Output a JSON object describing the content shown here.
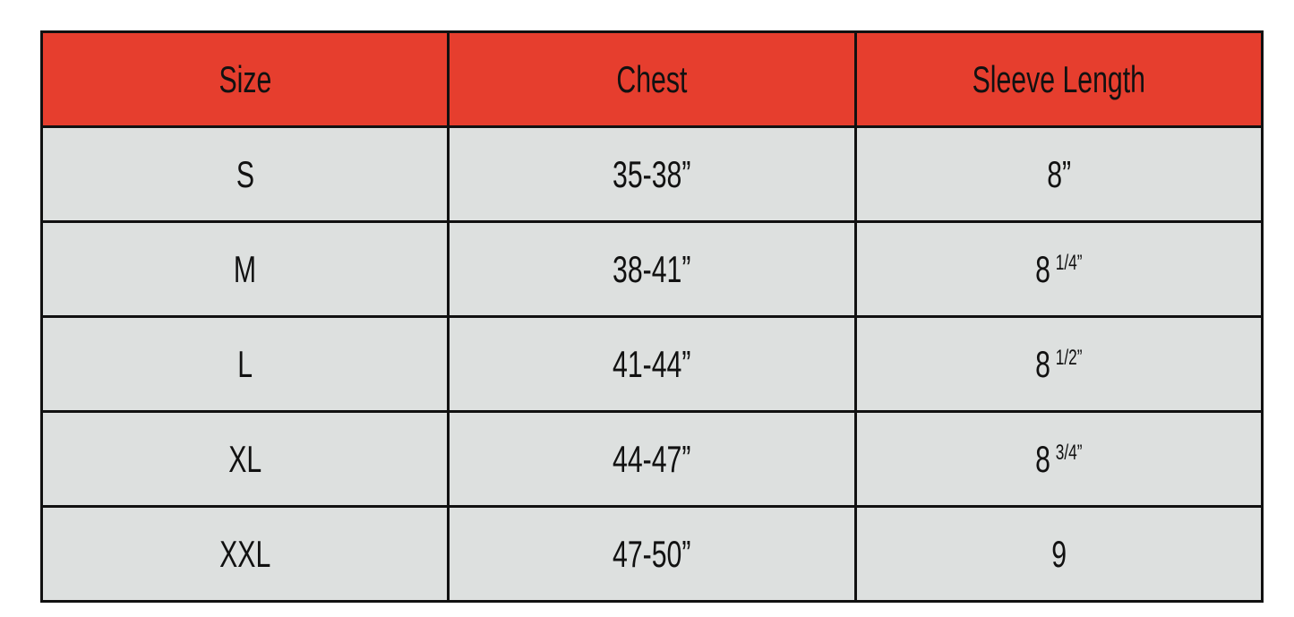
{
  "colors": {
    "header_bg": "#e63e2e",
    "row_bg": "#dde0df",
    "border": "#111111"
  },
  "headers": [
    "Size",
    "Chest",
    "Sleeve Length"
  ],
  "rows": [
    {
      "size": "S",
      "chest": "35-38”",
      "sleeve": "8”",
      "sleeve_fraction": ""
    },
    {
      "size": "M",
      "chest": "38-41”",
      "sleeve": "8",
      "sleeve_fraction": "1/4”"
    },
    {
      "size": "L",
      "chest": "41-44”",
      "sleeve": "8",
      "sleeve_fraction": "1/2”"
    },
    {
      "size": "XL",
      "chest": "44-47”",
      "sleeve": "8",
      "sleeve_fraction": "3/4”"
    },
    {
      "size": "XXL",
      "chest": "47-50”",
      "sleeve": "9",
      "sleeve_fraction": ""
    }
  ]
}
